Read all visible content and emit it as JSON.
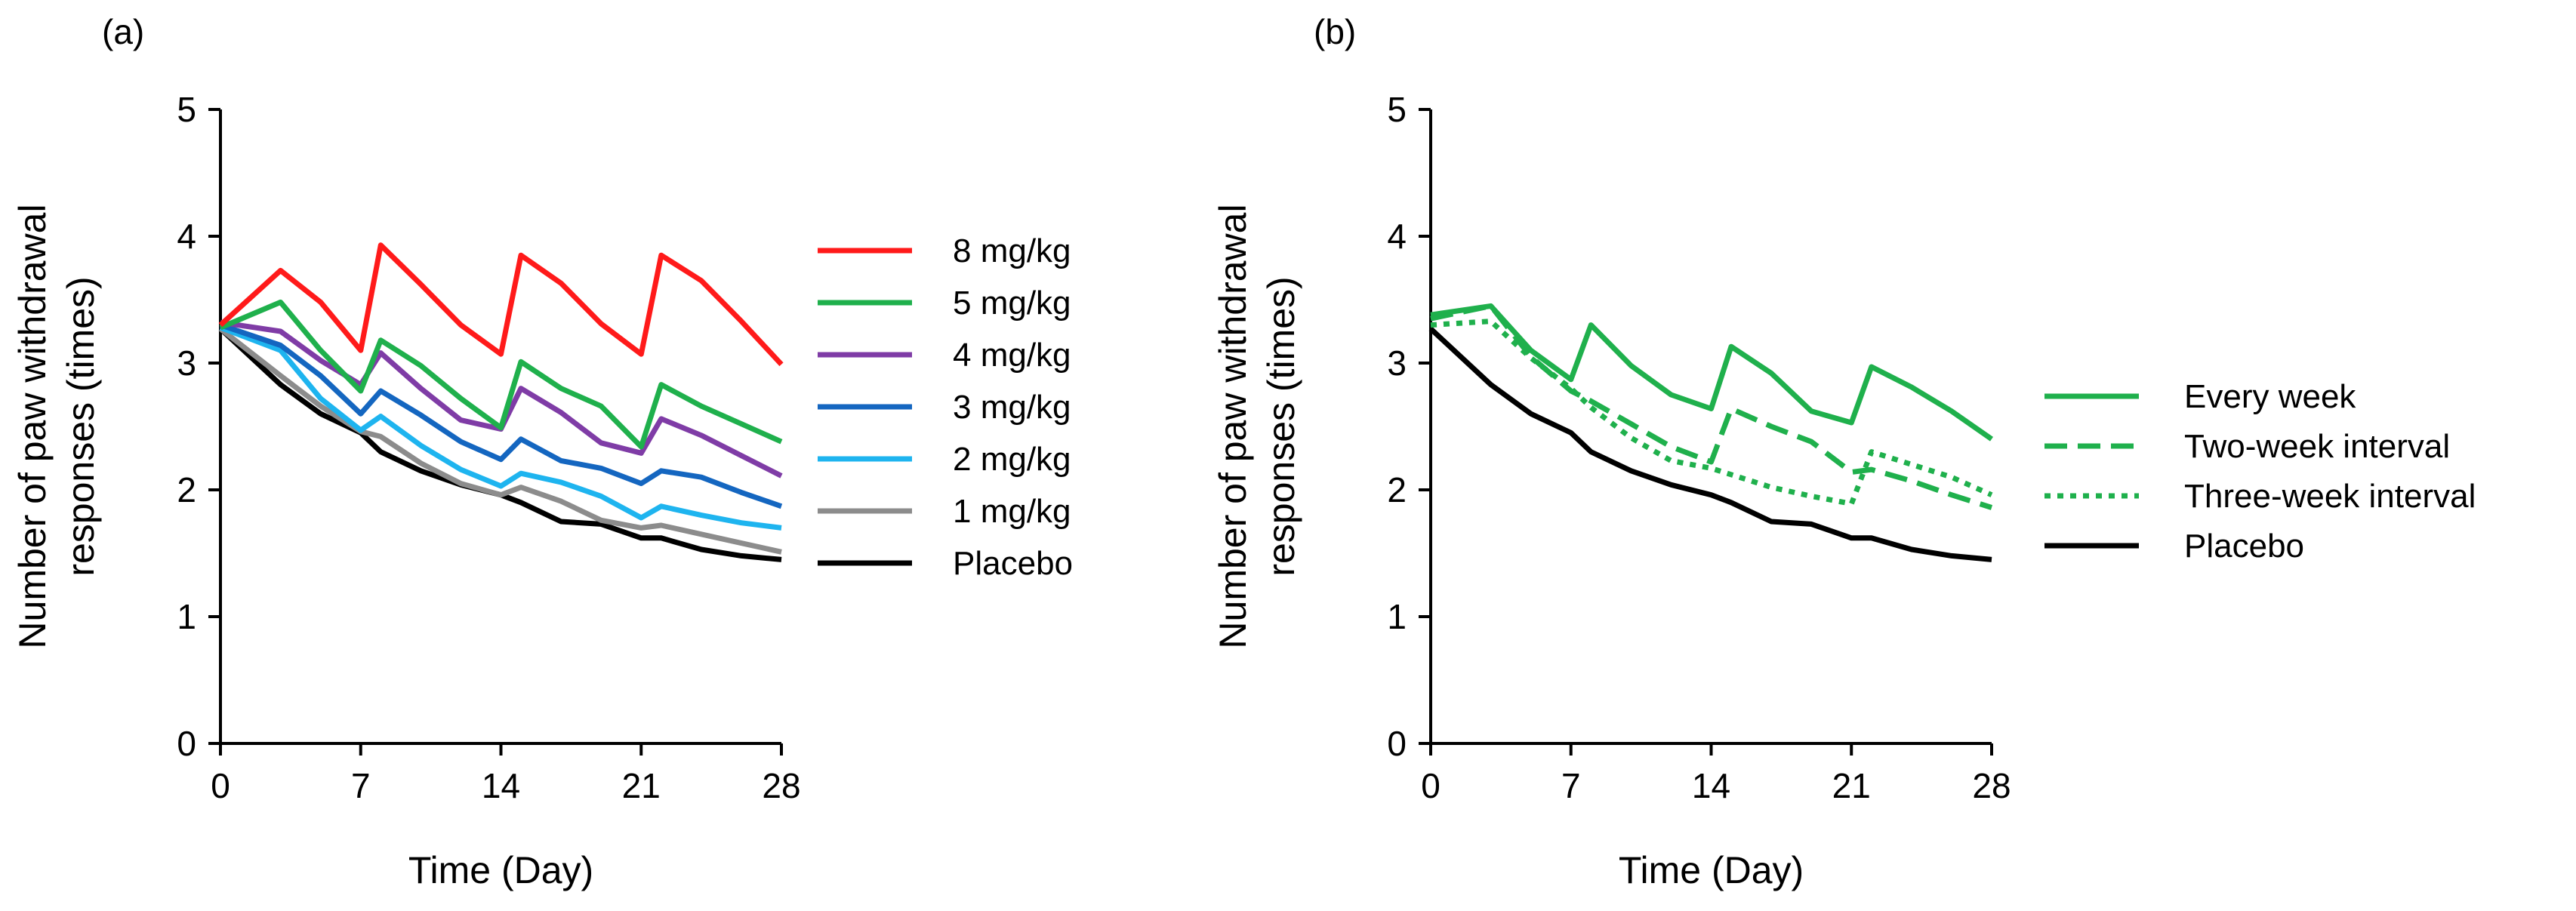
{
  "chart_data": [
    {
      "panel": "(a)",
      "type": "line",
      "xlabel": "Time (Day)",
      "ylabel_lines": [
        "Number of paw withdrawal",
        "responses  (times)"
      ],
      "xlim": [
        0,
        28
      ],
      "ylim": [
        0,
        5
      ],
      "xticks": [
        0,
        7,
        14,
        21,
        28
      ],
      "yticks": [
        0,
        1,
        2,
        3,
        4,
        5
      ],
      "grid": false,
      "legend_position": "right",
      "series": [
        {
          "name": "8 mg/kg",
          "color": "#ff1a1a",
          "dash": "solid",
          "x": [
            0,
            3,
            5,
            7,
            8,
            10,
            12,
            14,
            15,
            17,
            19,
            21,
            22,
            24,
            26,
            28
          ],
          "y": [
            3.3,
            3.73,
            3.48,
            3.1,
            3.93,
            3.62,
            3.3,
            3.07,
            3.85,
            3.63,
            3.31,
            3.07,
            3.85,
            3.65,
            3.33,
            2.99
          ]
        },
        {
          "name": "5 mg/kg",
          "color": "#1fb04c",
          "dash": "solid",
          "x": [
            0,
            3,
            5,
            7,
            8,
            10,
            12,
            14,
            15,
            17,
            19,
            21,
            22,
            24,
            26,
            28
          ],
          "y": [
            3.28,
            3.48,
            3.1,
            2.78,
            3.18,
            2.98,
            2.72,
            2.49,
            3.01,
            2.8,
            2.66,
            2.34,
            2.83,
            2.66,
            2.52,
            2.38
          ]
        },
        {
          "name": "4 mg/kg",
          "color": "#7f3ca6",
          "dash": "solid",
          "x": [
            0,
            3,
            5,
            7,
            8,
            10,
            12,
            14,
            15,
            17,
            19,
            21,
            22,
            24,
            26,
            28
          ],
          "y": [
            3.32,
            3.25,
            3.02,
            2.83,
            3.08,
            2.8,
            2.55,
            2.48,
            2.8,
            2.61,
            2.37,
            2.29,
            2.56,
            2.43,
            2.27,
            2.11
          ]
        },
        {
          "name": "3 mg/kg",
          "color": "#1466c0",
          "dash": "solid",
          "x": [
            0,
            3,
            5,
            7,
            8,
            10,
            12,
            14,
            15,
            17,
            19,
            21,
            22,
            24,
            26,
            28
          ],
          "y": [
            3.3,
            3.14,
            2.9,
            2.6,
            2.78,
            2.59,
            2.38,
            2.24,
            2.4,
            2.23,
            2.17,
            2.05,
            2.15,
            2.1,
            1.98,
            1.87
          ]
        },
        {
          "name": "2 mg/kg",
          "color": "#1eb4ef",
          "dash": "solid",
          "x": [
            0,
            3,
            5,
            7,
            8,
            10,
            12,
            14,
            15,
            17,
            19,
            21,
            22,
            24,
            26,
            28
          ],
          "y": [
            3.28,
            3.1,
            2.72,
            2.47,
            2.58,
            2.35,
            2.16,
            2.03,
            2.13,
            2.06,
            1.95,
            1.78,
            1.87,
            1.8,
            1.74,
            1.7
          ]
        },
        {
          "name": "1 mg/kg",
          "color": "#8c8c8c",
          "dash": "solid",
          "x": [
            0,
            3,
            5,
            7,
            8,
            10,
            12,
            14,
            15,
            17,
            19,
            21,
            22,
            24,
            26,
            28
          ],
          "y": [
            3.27,
            2.9,
            2.66,
            2.46,
            2.42,
            2.21,
            2.05,
            1.96,
            2.02,
            1.91,
            1.76,
            1.7,
            1.72,
            1.65,
            1.58,
            1.51
          ]
        },
        {
          "name": "Placebo",
          "color": "#000000",
          "dash": "solid",
          "x": [
            0,
            3,
            5,
            7,
            8,
            10,
            12,
            14,
            15,
            17,
            19,
            21,
            22,
            24,
            26,
            28
          ],
          "y": [
            3.27,
            2.83,
            2.6,
            2.45,
            2.3,
            2.15,
            2.04,
            1.96,
            1.9,
            1.75,
            1.73,
            1.62,
            1.62,
            1.53,
            1.48,
            1.45
          ]
        }
      ]
    },
    {
      "panel": "(b)",
      "type": "line",
      "xlabel": "Time (Day)",
      "ylabel_lines": [
        "Number of paw withdrawal",
        "responses  (times)"
      ],
      "xlim": [
        0,
        28
      ],
      "ylim": [
        0,
        5
      ],
      "xticks": [
        0,
        7,
        14,
        21,
        28
      ],
      "yticks": [
        0,
        1,
        2,
        3,
        4,
        5
      ],
      "grid": false,
      "legend_position": "right",
      "series": [
        {
          "name": "Every week",
          "color": "#1fb04c",
          "dash": "solid",
          "x": [
            0,
            3,
            5,
            7,
            8,
            10,
            12,
            14,
            15,
            17,
            19,
            21,
            22,
            24,
            26,
            28
          ],
          "y": [
            3.38,
            3.45,
            3.1,
            2.87,
            3.3,
            2.98,
            2.75,
            2.64,
            3.13,
            2.92,
            2.62,
            2.53,
            2.97,
            2.81,
            2.62,
            2.4
          ]
        },
        {
          "name": "Two-week interval",
          "color": "#1fb04c",
          "dash": "dashed",
          "x": [
            0,
            3,
            5,
            7,
            8,
            10,
            12,
            14,
            15,
            17,
            19,
            21,
            22,
            24,
            26,
            28
          ],
          "y": [
            3.35,
            3.45,
            3.05,
            2.78,
            2.7,
            2.52,
            2.34,
            2.22,
            2.64,
            2.5,
            2.38,
            2.14,
            2.16,
            2.07,
            1.96,
            1.86
          ]
        },
        {
          "name": "Three-week interval",
          "color": "#1fb04c",
          "dash": "dotted",
          "x": [
            0,
            3,
            5,
            7,
            8,
            10,
            12,
            14,
            15,
            17,
            19,
            21,
            22,
            24,
            26,
            28
          ],
          "y": [
            3.3,
            3.33,
            3.04,
            2.8,
            2.65,
            2.41,
            2.23,
            2.17,
            2.12,
            2.02,
            1.95,
            1.89,
            2.3,
            2.2,
            2.1,
            1.96
          ]
        },
        {
          "name": "Placebo",
          "color": "#000000",
          "dash": "solid",
          "x": [
            0,
            3,
            5,
            7,
            8,
            10,
            12,
            14,
            15,
            17,
            19,
            21,
            22,
            24,
            26,
            28
          ],
          "y": [
            3.27,
            2.83,
            2.6,
            2.45,
            2.3,
            2.15,
            2.04,
            1.96,
            1.9,
            1.75,
            1.73,
            1.62,
            1.62,
            1.53,
            1.48,
            1.45
          ]
        }
      ]
    }
  ]
}
